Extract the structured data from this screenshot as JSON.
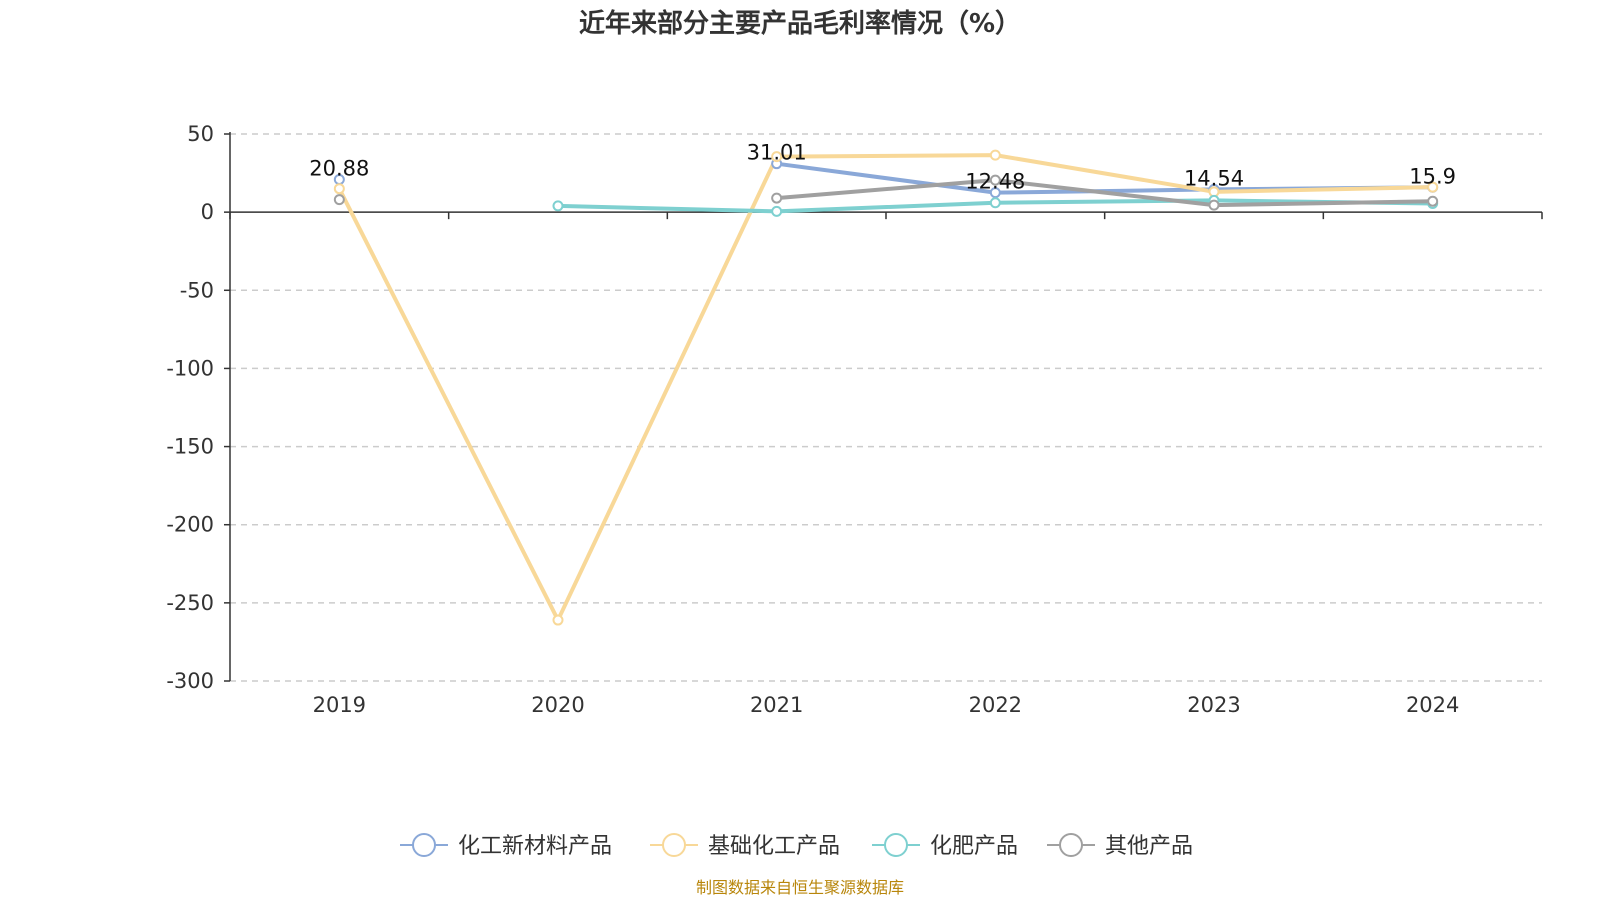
{
  "chart_data": {
    "type": "line",
    "title": "近年来部分主要产品毛利率情况（%）",
    "xlabel": "",
    "ylabel": "",
    "categories": [
      "2019",
      "2020",
      "2021",
      "2022",
      "2023",
      "2024"
    ],
    "ylim": [
      -300,
      50
    ],
    "yticks": [
      "50",
      "0",
      "-50",
      "-100",
      "-150",
      "-200",
      "-250",
      "-300"
    ],
    "grid": true,
    "legend_position": "bottom",
    "series": [
      {
        "name": "化工新材料产品",
        "color": "#8aa8d8",
        "values": [
          20.88,
          null,
          31.01,
          12.48,
          14.54,
          15.9
        ]
      },
      {
        "name": "基础化工产品",
        "color": "#f8d898",
        "values": [
          15,
          -261,
          35.5,
          36.5,
          13,
          16
        ]
      },
      {
        "name": "化肥产品",
        "color": "#7ed0d0",
        "values": [
          null,
          4,
          0.5,
          6,
          7.5,
          5.5
        ]
      },
      {
        "name": "其他产品",
        "color": "#a0a0a0",
        "values": [
          8,
          null,
          9,
          20.5,
          4.5,
          7
        ]
      }
    ],
    "data_labels": [
      {
        "text": "20.88",
        "category": "2019",
        "value": 20.88
      },
      {
        "text": "31.01",
        "category": "2021",
        "value": 31.01
      },
      {
        "text": "12.48",
        "category": "2022",
        "value": 12.48
      },
      {
        "text": "14.54",
        "category": "2023",
        "value": 14.54
      },
      {
        "text": "15.9",
        "category": "2024",
        "value": 15.9
      }
    ]
  },
  "source": "制图数据来自恒生聚源数据库"
}
